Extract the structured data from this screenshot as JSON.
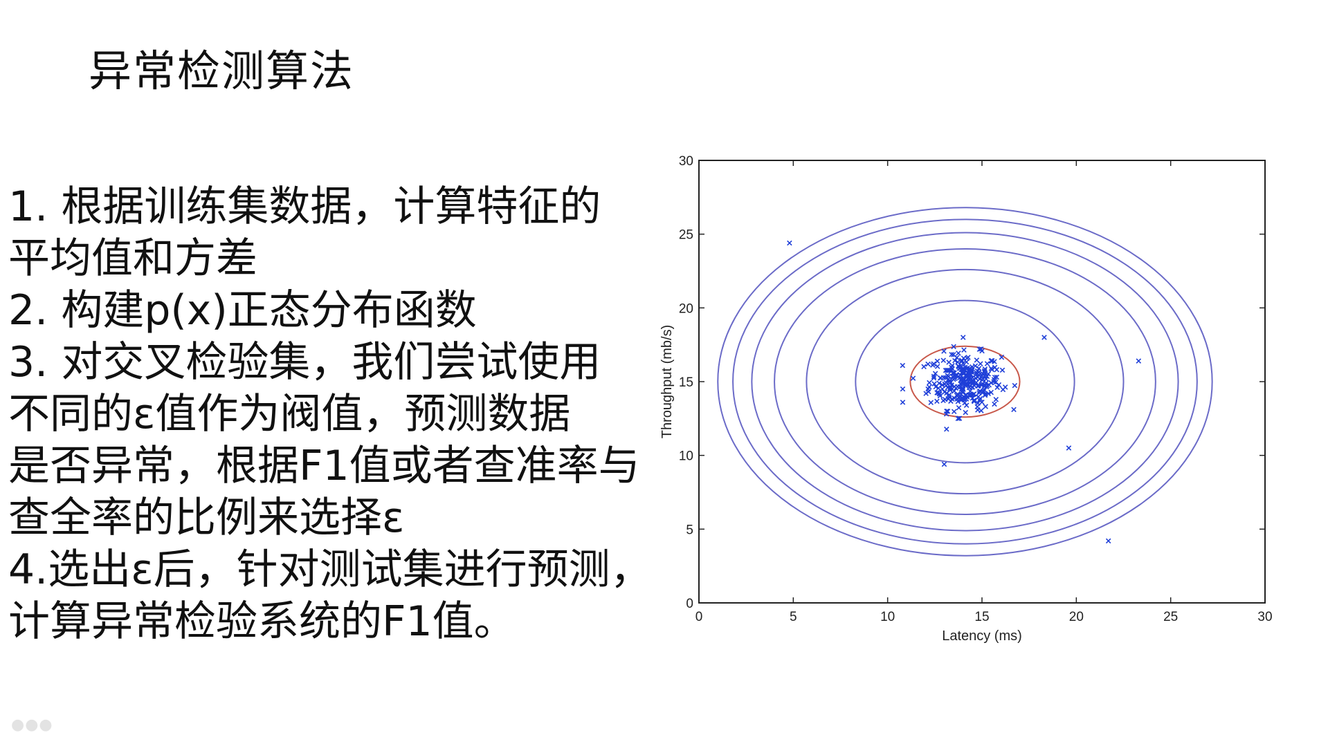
{
  "slide": {
    "title": "异常检测算法",
    "steps": [
      "1.  根据训练集数据，计算特征的",
      "平均值和方差",
      "2.  构建p(x)正态分布函数",
      "3.  对交叉检验集，我们尝试使用",
      "不同的ε值作为阀值，预测数据",
      "是否异常，根据F1值或者查准率与",
      "查全率的比例来选择ε",
      "4.选出ε后，针对测试集进行预测，",
      "计算异常检验系统的F1值。"
    ]
  },
  "colors": {
    "contour": "#6b6bc8",
    "threshold_contour": "#c8584a",
    "points": "#1f3fd8",
    "axis": "#222222"
  },
  "chart_data": {
    "type": "scatter",
    "title": "",
    "xlabel": "Latency (ms)",
    "ylabel": "Throughput (mb/s)",
    "xlim": [
      0,
      30
    ],
    "ylim": [
      0,
      30
    ],
    "xticks": [
      "0",
      "5",
      "10",
      "15",
      "20",
      "25",
      "30"
    ],
    "yticks": [
      "0",
      "5",
      "10",
      "15",
      "20",
      "25",
      "30"
    ],
    "grid": false,
    "marker": "x",
    "center": [
      14.1,
      15.0
    ],
    "contours": [
      {
        "rx": 5.8,
        "ry": 5.5
      },
      {
        "rx": 8.4,
        "ry": 7.6
      },
      {
        "rx": 10.1,
        "ry": 9.0
      },
      {
        "rx": 11.3,
        "ry": 10.1
      },
      {
        "rx": 12.3,
        "ry": 11.0
      },
      {
        "rx": 13.1,
        "ry": 11.8
      }
    ],
    "threshold_contour": {
      "rx": 2.9,
      "ry": 2.4
    },
    "outliers": [
      [
        4.8,
        24.4
      ],
      [
        18.3,
        18.0
      ],
      [
        23.3,
        16.4
      ],
      [
        19.6,
        10.5
      ],
      [
        13.0,
        9.4
      ],
      [
        21.7,
        4.2
      ],
      [
        10.8,
        14.5
      ],
      [
        10.8,
        13.6
      ],
      [
        14.0,
        18.0
      ]
    ],
    "cluster": {
      "count": 300,
      "x_mean": 14.1,
      "y_mean": 15.0,
      "x_std": 0.95,
      "y_std": 0.95
    }
  }
}
